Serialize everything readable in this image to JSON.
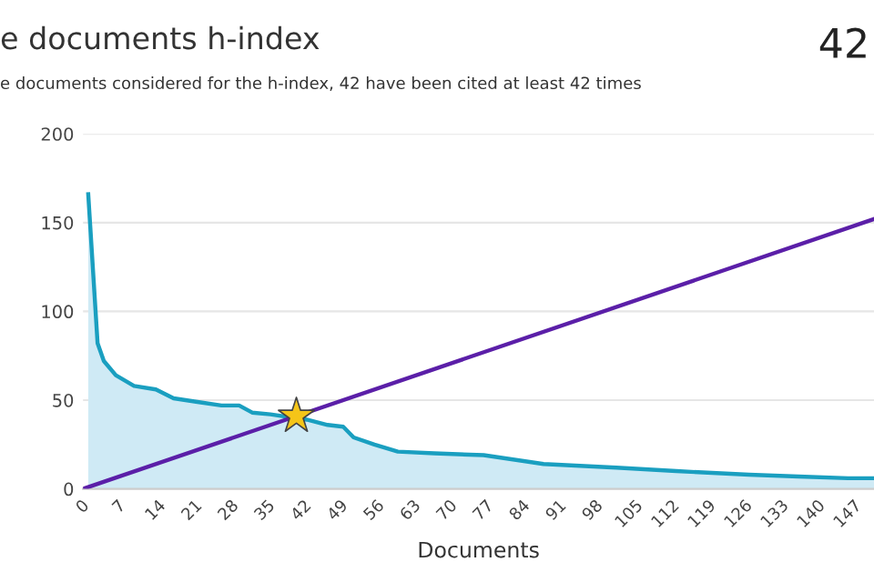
{
  "chart_data": {
    "type": "area",
    "title": "e documents h-index",
    "subtitle": "e documents considered for the h-index, 42 have been cited at least 42 times",
    "xlabel": "Documents",
    "annotations": [
      "42"
    ],
    "xlim": [
      0,
      152
    ],
    "xticks": [
      0,
      7,
      14,
      21,
      28,
      35,
      42,
      49,
      56,
      63,
      70,
      77,
      84,
      91,
      98,
      105,
      112,
      119,
      126,
      133,
      140,
      147
    ],
    "ylim": [
      0,
      200
    ],
    "yticks": [
      0,
      50,
      100,
      150,
      200
    ],
    "grid": "y",
    "legend": false,
    "series": [
      {
        "color": "#1a9fc0",
        "x": [
          1,
          2.8,
          4,
          6.3,
          9.8,
          14,
          17.4,
          22,
          26.6,
          30,
          32.5,
          36,
          43,
          47,
          50,
          52,
          56,
          60.5,
          67.5,
          77,
          88.5,
          102.5,
          114,
          128,
          137.5,
          147,
          152
        ],
        "values": [
          166,
          82,
          72,
          64,
          58,
          56,
          51,
          49,
          47,
          47,
          43,
          42,
          39,
          36,
          35,
          29,
          25,
          21,
          20,
          19,
          14,
          12,
          10,
          8,
          7,
          6,
          6
        ]
      },
      {
        "type": "line",
        "color": "#5b1fa8",
        "x": [
          0,
          152
        ],
        "values": [
          0,
          152
        ]
      },
      {
        "type": "scatter",
        "color": "#f5c518",
        "marker": "star",
        "x": [
          41
        ],
        "values": [
          41
        ]
      }
    ]
  }
}
